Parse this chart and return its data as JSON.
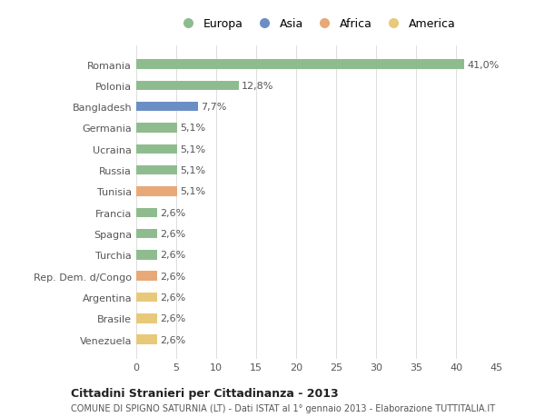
{
  "categories": [
    "Venezuela",
    "Brasile",
    "Argentina",
    "Rep. Dem. d/Congo",
    "Turchia",
    "Spagna",
    "Francia",
    "Tunisia",
    "Russia",
    "Ucraina",
    "Germania",
    "Bangladesh",
    "Polonia",
    "Romania"
  ],
  "values": [
    2.6,
    2.6,
    2.6,
    2.6,
    2.6,
    2.6,
    2.6,
    5.1,
    5.1,
    5.1,
    5.1,
    7.7,
    12.8,
    41.0
  ],
  "labels": [
    "2,6%",
    "2,6%",
    "2,6%",
    "2,6%",
    "2,6%",
    "2,6%",
    "2,6%",
    "5,1%",
    "5,1%",
    "5,1%",
    "5,1%",
    "7,7%",
    "12,8%",
    "41,0%"
  ],
  "colors": [
    "#e8c97a",
    "#e8c97a",
    "#e8c97a",
    "#e8a878",
    "#8fbc8f",
    "#8fbc8f",
    "#8fbc8f",
    "#e8a878",
    "#8fbc8f",
    "#8fbc8f",
    "#8fbc8f",
    "#6b8fc4",
    "#8fbc8f",
    "#8fbc8f"
  ],
  "legend_labels": [
    "Europa",
    "Asia",
    "Africa",
    "America"
  ],
  "legend_colors": [
    "#8fbc8f",
    "#6b8fc4",
    "#e8a878",
    "#e8c97a"
  ],
  "title": "Cittadini Stranieri per Cittadinanza - 2013",
  "subtitle": "COMUNE DI SPIGNO SATURNIA (LT) - Dati ISTAT al 1° gennaio 2013 - Elaborazione TUTTITALIA.IT",
  "xlim": [
    0,
    45
  ],
  "xticks": [
    0,
    5,
    10,
    15,
    20,
    25,
    30,
    35,
    40,
    45
  ],
  "bg_color": "#ffffff",
  "bar_height": 0.45,
  "grid_color": "#dddddd",
  "label_fontsize": 8.0,
  "tick_fontsize": 8.0,
  "text_color": "#555555"
}
